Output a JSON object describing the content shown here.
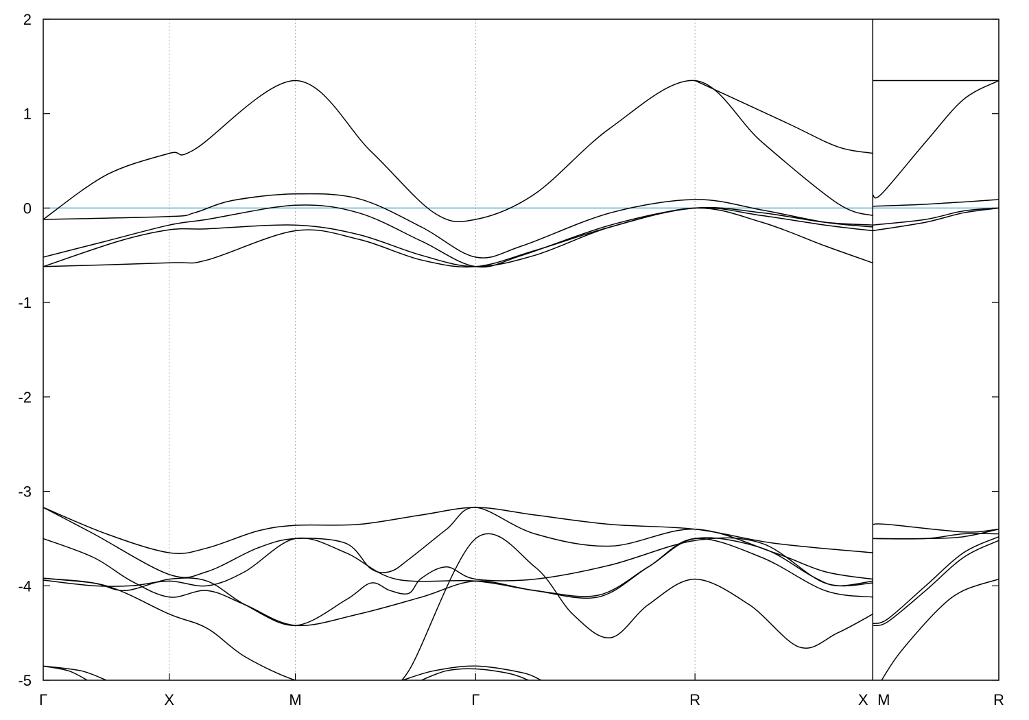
{
  "chart_data": {
    "type": "line",
    "title": "",
    "xlabel": "",
    "ylabel": "",
    "ylim": [
      -5,
      2
    ],
    "xlim": [
      0,
      7.58
    ],
    "y_ticks": [
      2,
      1,
      0,
      -1,
      -2,
      -3,
      -4,
      -5
    ],
    "y_tick_labels": [
      "2",
      "1",
      "0",
      "-1",
      "-2",
      "-3",
      "-4",
      "-5"
    ],
    "k_points": [
      {
        "label": "Γ",
        "x": 0
      },
      {
        "label": "X",
        "x": 1.0
      },
      {
        "label": "M",
        "x": 2.0
      },
      {
        "label": "Γ",
        "x": 3.43
      },
      {
        "label": "R",
        "x": 5.17
      },
      {
        "label": "X",
        "x": 6.58
      },
      {
        "label": "M",
        "x": 6.58
      },
      {
        "label": "R",
        "x": 7.58
      }
    ],
    "grid": "vertical dotted lines at high-symmetry points",
    "fermi_level": {
      "value": 0,
      "color": "#5ab4c8"
    },
    "line_color": "#000000",
    "series": [
      {
        "points": [
          [
            0,
            -0.12
          ],
          [
            0.5,
            0.35
          ],
          [
            1.0,
            0.58
          ],
          [
            1.2,
            0.62
          ],
          [
            2.0,
            1.35
          ],
          [
            2.6,
            0.6
          ],
          [
            3.1,
            -0.05
          ],
          [
            3.43,
            -0.12
          ],
          [
            3.9,
            0.15
          ],
          [
            4.5,
            0.85
          ],
          [
            5.17,
            1.35
          ],
          [
            5.7,
            0.7
          ],
          [
            6.3,
            0.05
          ],
          [
            6.58,
            -0.08
          ]
        ]
      },
      {
        "points": [
          [
            5.17,
            1.35
          ],
          [
            5.9,
            0.9
          ],
          [
            6.3,
            0.65
          ],
          [
            6.58,
            0.58
          ]
        ]
      },
      {
        "points": [
          [
            0,
            -0.12
          ],
          [
            1.0,
            -0.09
          ],
          [
            1.2,
            -0.05
          ],
          [
            1.5,
            0.08
          ],
          [
            2.0,
            0.15
          ],
          [
            2.5,
            0.1
          ],
          [
            3.0,
            -0.2
          ],
          [
            3.43,
            -0.52
          ],
          [
            3.8,
            -0.4
          ],
          [
            4.5,
            -0.05
          ],
          [
            5.17,
            0.09
          ],
          [
            5.7,
            -0.02
          ],
          [
            6.2,
            -0.15
          ],
          [
            6.58,
            -0.2
          ]
        ]
      },
      {
        "points": [
          [
            0,
            -0.52
          ],
          [
            0.5,
            -0.35
          ],
          [
            1.0,
            -0.18
          ],
          [
            1.3,
            -0.12
          ],
          [
            2.0,
            0.03
          ],
          [
            2.5,
            -0.05
          ],
          [
            3.0,
            -0.35
          ],
          [
            3.43,
            -0.62
          ],
          [
            3.8,
            -0.5
          ],
          [
            4.5,
            -0.18
          ],
          [
            5.17,
            0.0
          ],
          [
            5.7,
            -0.05
          ],
          [
            6.2,
            -0.15
          ],
          [
            6.58,
            -0.18
          ]
        ]
      },
      {
        "points": [
          [
            0,
            -0.62
          ],
          [
            0.6,
            -0.35
          ],
          [
            1.0,
            -0.23
          ],
          [
            1.3,
            -0.22
          ],
          [
            2.0,
            -0.18
          ],
          [
            2.5,
            -0.28
          ],
          [
            3.0,
            -0.5
          ],
          [
            3.43,
            -0.62
          ],
          [
            3.9,
            -0.5
          ],
          [
            4.5,
            -0.2
          ],
          [
            5.17,
            0.0
          ],
          [
            5.7,
            -0.08
          ],
          [
            6.2,
            -0.18
          ],
          [
            6.58,
            -0.24
          ]
        ]
      },
      {
        "points": [
          [
            0,
            -0.62
          ],
          [
            1.0,
            -0.58
          ],
          [
            1.3,
            -0.55
          ],
          [
            2.0,
            -0.24
          ],
          [
            2.5,
            -0.33
          ],
          [
            3.0,
            -0.55
          ],
          [
            3.43,
            -0.62
          ],
          [
            3.9,
            -0.45
          ],
          [
            4.5,
            -0.2
          ],
          [
            5.17,
            0.0
          ],
          [
            5.7,
            -0.15
          ],
          [
            6.2,
            -0.4
          ],
          [
            6.58,
            -0.58
          ]
        ]
      },
      {
        "points": [
          [
            6.58,
            1.35
          ],
          [
            7.58,
            1.35
          ]
        ]
      },
      {
        "points": [
          [
            6.58,
            0.14
          ],
          [
            6.65,
            0.15
          ],
          [
            7.0,
            0.7
          ],
          [
            7.3,
            1.15
          ],
          [
            7.58,
            1.35
          ]
        ]
      },
      {
        "points": [
          [
            6.58,
            0.02
          ],
          [
            7.0,
            0.04
          ],
          [
            7.58,
            0.09
          ]
        ]
      },
      {
        "points": [
          [
            6.58,
            -0.18
          ],
          [
            7.0,
            -0.12
          ],
          [
            7.3,
            -0.03
          ],
          [
            7.58,
            0.0
          ]
        ]
      },
      {
        "points": [
          [
            6.58,
            -0.24
          ],
          [
            7.0,
            -0.15
          ],
          [
            7.3,
            -0.05
          ],
          [
            7.58,
            0.0
          ]
        ]
      },
      {
        "points": [
          [
            0,
            -3.17
          ],
          [
            0.5,
            -3.45
          ],
          [
            1.0,
            -3.65
          ],
          [
            1.3,
            -3.6
          ],
          [
            1.7,
            -3.42
          ],
          [
            2.0,
            -3.36
          ],
          [
            2.5,
            -3.35
          ],
          [
            3.0,
            -3.25
          ],
          [
            3.43,
            -3.17
          ],
          [
            3.9,
            -3.25
          ],
          [
            4.5,
            -3.35
          ],
          [
            5.17,
            -3.4
          ],
          [
            5.8,
            -3.55
          ],
          [
            6.58,
            -3.65
          ]
        ]
      },
      {
        "points": [
          [
            0,
            -3.17
          ],
          [
            0.4,
            -3.45
          ],
          [
            1.0,
            -3.88
          ],
          [
            1.3,
            -3.85
          ],
          [
            1.7,
            -3.6
          ],
          [
            2.0,
            -3.5
          ],
          [
            2.4,
            -3.55
          ],
          [
            2.6,
            -3.82
          ],
          [
            2.75,
            -3.85
          ],
          [
            2.9,
            -3.72
          ],
          [
            3.2,
            -3.4
          ],
          [
            3.43,
            -3.17
          ],
          [
            3.9,
            -3.45
          ],
          [
            4.5,
            -3.58
          ],
          [
            5.17,
            -3.4
          ],
          [
            5.8,
            -3.65
          ],
          [
            6.2,
            -3.85
          ],
          [
            6.58,
            -3.93
          ]
        ]
      },
      {
        "points": [
          [
            0,
            -3.5
          ],
          [
            0.4,
            -3.7
          ],
          [
            0.7,
            -3.95
          ],
          [
            1.0,
            -4.12
          ],
          [
            1.3,
            -4.05
          ],
          [
            1.6,
            -4.2
          ],
          [
            2.0,
            -4.42
          ],
          [
            2.5,
            -4.3
          ],
          [
            3.0,
            -4.12
          ],
          [
            3.43,
            -3.95
          ],
          [
            3.9,
            -4.05
          ],
          [
            4.4,
            -4.1
          ],
          [
            4.8,
            -3.8
          ],
          [
            5.17,
            -3.5
          ],
          [
            5.7,
            -3.6
          ],
          [
            6.1,
            -3.9
          ],
          [
            6.3,
            -4.0
          ],
          [
            6.58,
            -3.95
          ]
        ]
      },
      {
        "points": [
          [
            0,
            -3.92
          ],
          [
            0.4,
            -3.97
          ],
          [
            0.65,
            -4.05
          ],
          [
            1.0,
            -3.93
          ],
          [
            1.3,
            -3.95
          ],
          [
            1.6,
            -4.2
          ],
          [
            2.0,
            -4.42
          ],
          [
            2.4,
            -4.15
          ],
          [
            2.6,
            -3.97
          ],
          [
            2.75,
            -4.05
          ],
          [
            2.9,
            -4.08
          ],
          [
            3.0,
            -3.92
          ],
          [
            3.2,
            -3.8
          ],
          [
            3.43,
            -3.93
          ],
          [
            3.9,
            -3.93
          ],
          [
            4.5,
            -3.78
          ],
          [
            5.17,
            -3.52
          ],
          [
            5.7,
            -3.55
          ],
          [
            6.2,
            -3.97
          ],
          [
            6.58,
            -3.97
          ]
        ]
      },
      {
        "points": [
          [
            0,
            -3.94
          ],
          [
            0.4,
            -4.0
          ],
          [
            0.7,
            -4.0
          ],
          [
            1.0,
            -3.95
          ],
          [
            1.3,
            -4.0
          ],
          [
            1.6,
            -3.85
          ],
          [
            2.0,
            -3.5
          ],
          [
            2.4,
            -3.65
          ],
          [
            2.8,
            -3.93
          ],
          [
            3.43,
            -3.95
          ],
          [
            3.9,
            -4.05
          ],
          [
            4.4,
            -4.12
          ],
          [
            4.8,
            -3.8
          ],
          [
            5.17,
            -3.5
          ],
          [
            5.7,
            -3.7
          ],
          [
            6.2,
            -4.05
          ],
          [
            6.58,
            -4.12
          ]
        ]
      },
      {
        "points": [
          [
            0,
            -3.92
          ],
          [
            0.5,
            -4.0
          ],
          [
            1.0,
            -4.3
          ],
          [
            1.3,
            -4.45
          ],
          [
            1.6,
            -4.75
          ],
          [
            2.0,
            -5.0
          ],
          [
            2.3,
            -5.05
          ]
        ]
      },
      {
        "points": [
          [
            2.7,
            -5.05
          ],
          [
            2.9,
            -4.9
          ],
          [
            3.43,
            -3.5
          ],
          [
            3.9,
            -3.8
          ],
          [
            4.2,
            -4.3
          ],
          [
            4.5,
            -4.55
          ],
          [
            4.8,
            -4.2
          ],
          [
            5.17,
            -3.93
          ],
          [
            5.6,
            -4.2
          ],
          [
            6.0,
            -4.65
          ],
          [
            6.3,
            -4.5
          ],
          [
            6.58,
            -4.3
          ]
        ]
      },
      {
        "points": [
          [
            0,
            -4.85
          ],
          [
            0.3,
            -4.9
          ],
          [
            0.5,
            -5.0
          ]
        ]
      },
      {
        "points": [
          [
            0,
            -4.85
          ],
          [
            0.2,
            -4.9
          ],
          [
            0.35,
            -5.0
          ]
        ]
      },
      {
        "points": [
          [
            2.85,
            -5.0
          ],
          [
            3.1,
            -4.9
          ],
          [
            3.43,
            -4.85
          ],
          [
            3.8,
            -4.92
          ],
          [
            3.95,
            -5.0
          ]
        ]
      },
      {
        "points": [
          [
            3.0,
            -5.0
          ],
          [
            3.2,
            -4.9
          ],
          [
            3.43,
            -4.88
          ],
          [
            3.7,
            -4.93
          ],
          [
            3.85,
            -5.0
          ]
        ]
      },
      {
        "points": [
          [
            6.58,
            -3.35
          ],
          [
            6.7,
            -3.35
          ],
          [
            7.3,
            -3.43
          ],
          [
            7.58,
            -3.4
          ]
        ]
      },
      {
        "points": [
          [
            6.58,
            -3.5
          ],
          [
            7.0,
            -3.5
          ],
          [
            7.3,
            -3.48
          ],
          [
            7.58,
            -3.4
          ]
        ]
      },
      {
        "points": [
          [
            6.58,
            -3.5
          ],
          [
            7.0,
            -3.5
          ],
          [
            7.3,
            -3.45
          ],
          [
            7.58,
            -3.45
          ]
        ]
      },
      {
        "points": [
          [
            6.58,
            -4.4
          ],
          [
            6.7,
            -4.35
          ],
          [
            7.0,
            -4.0
          ],
          [
            7.3,
            -3.65
          ],
          [
            7.58,
            -3.48
          ]
        ]
      },
      {
        "points": [
          [
            6.58,
            -4.42
          ],
          [
            6.7,
            -4.38
          ],
          [
            7.0,
            -4.05
          ],
          [
            7.3,
            -3.7
          ],
          [
            7.58,
            -3.52
          ]
        ]
      },
      {
        "points": [
          [
            6.65,
            -5.0
          ],
          [
            6.8,
            -4.7
          ],
          [
            7.1,
            -4.25
          ],
          [
            7.3,
            -4.05
          ],
          [
            7.58,
            -3.93
          ]
        ]
      }
    ]
  }
}
